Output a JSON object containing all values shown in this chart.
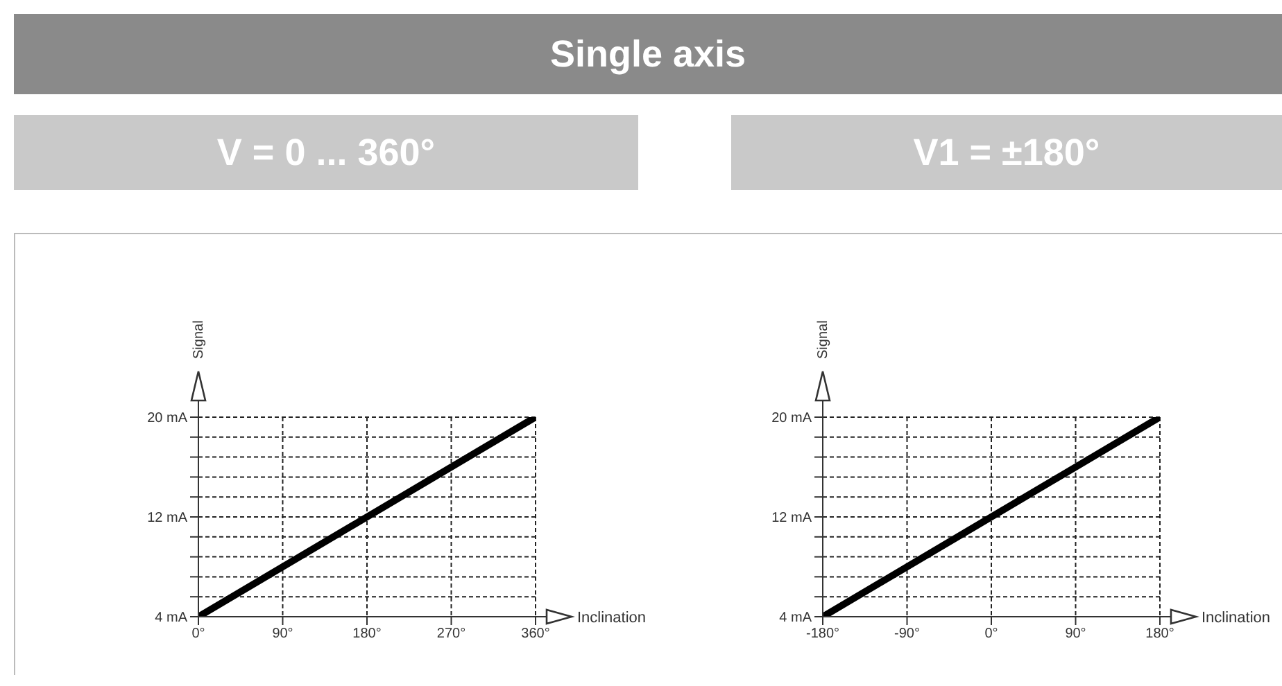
{
  "chart_data": [
    {
      "type": "line",
      "title": "Single axis",
      "subtitle": "V = 0 ... 360°",
      "xlabel": "Inclination",
      "ylabel": "Signal",
      "x": [
        0,
        360
      ],
      "series": [
        {
          "color": "#000000",
          "values": [
            4,
            20
          ]
        }
      ],
      "xlim": [
        0,
        360
      ],
      "xticks": [
        {
          "value": 0,
          "label": "0°"
        },
        {
          "value": 90,
          "label": "90°"
        },
        {
          "value": 180,
          "label": "180°"
        },
        {
          "value": 270,
          "label": "270°"
        },
        {
          "value": 360,
          "label": "360°"
        }
      ],
      "ylim": [
        4,
        20
      ],
      "yticks": [
        {
          "value": 4,
          "label": "4 mA"
        },
        {
          "value": 5.6,
          "label": null
        },
        {
          "value": 7.2,
          "label": null
        },
        {
          "value": 8.8,
          "label": null
        },
        {
          "value": 10.4,
          "label": null
        },
        {
          "value": 12,
          "label": "12 mA"
        },
        {
          "value": 13.6,
          "label": null
        },
        {
          "value": 15.2,
          "label": null
        },
        {
          "value": 16.8,
          "label": null
        },
        {
          "value": 18.4,
          "label": null
        },
        {
          "value": 20,
          "label": "20 mA"
        }
      ],
      "grid": true,
      "marker": "none",
      "line_style": "solid",
      "legend": false
    },
    {
      "type": "line",
      "subtitle": "V1 = ±180°",
      "xlabel": "Inclination",
      "ylabel": "Signal",
      "x": [
        -180,
        180
      ],
      "series": [
        {
          "color": "#000000",
          "values": [
            4,
            20
          ]
        }
      ],
      "xlim": [
        -180,
        180
      ],
      "xticks": [
        {
          "value": -180,
          "label": "-180°"
        },
        {
          "value": -90,
          "label": "-90°"
        },
        {
          "value": 0,
          "label": "0°"
        },
        {
          "value": 90,
          "label": "90°"
        },
        {
          "value": 180,
          "label": "180°"
        }
      ],
      "ylim": [
        4,
        20
      ],
      "yticks": [
        {
          "value": 4,
          "label": "4 mA"
        },
        {
          "value": 5.6,
          "label": null
        },
        {
          "value": 7.2,
          "label": null
        },
        {
          "value": 8.8,
          "label": null
        },
        {
          "value": 10.4,
          "label": null
        },
        {
          "value": 12,
          "label": "12 mA"
        },
        {
          "value": 13.6,
          "label": null
        },
        {
          "value": 15.2,
          "label": null
        },
        {
          "value": 16.8,
          "label": null
        },
        {
          "value": 18.4,
          "label": null
        },
        {
          "value": 20,
          "label": "20 mA"
        }
      ],
      "grid": true,
      "marker": "none",
      "line_style": "solid",
      "legend": false
    }
  ]
}
